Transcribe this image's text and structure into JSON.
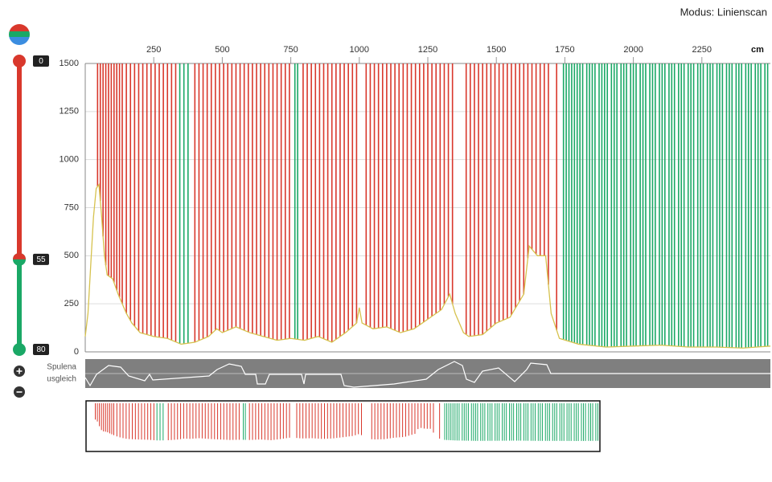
{
  "header": {
    "mode": "Modus: Linienscan"
  },
  "slider": {
    "thumbs": [
      {
        "value": 0,
        "color": "#d9382c"
      },
      {
        "value": 55,
        "color": "#1aa866"
      },
      {
        "value": 80,
        "color": "#1aa866"
      }
    ]
  },
  "compensation": {
    "label_lines": [
      "Spulena",
      "usgleich"
    ]
  },
  "chart_data": {
    "type": "line",
    "x_unit": "cm",
    "xlim": [
      0,
      2500
    ],
    "ylim": [
      0,
      1500
    ],
    "xticks": [
      250,
      500,
      750,
      1000,
      1250,
      1500,
      1750,
      2000,
      2250
    ],
    "yticks": [
      0,
      250,
      500,
      750,
      1000,
      1250,
      1500
    ],
    "grid": true,
    "trace": {
      "color": "#d6c24e",
      "x": [
        0,
        10,
        20,
        30,
        40,
        50,
        60,
        70,
        80,
        100,
        120,
        150,
        170,
        200,
        250,
        300,
        350,
        400,
        450,
        480,
        500,
        550,
        600,
        650,
        700,
        750,
        800,
        850,
        900,
        950,
        990,
        1000,
        1010,
        1050,
        1100,
        1150,
        1200,
        1250,
        1300,
        1330,
        1350,
        1380,
        1400,
        1450,
        1500,
        1550,
        1600,
        1620,
        1650,
        1680,
        1700,
        1730,
        1800,
        1900,
        2000,
        2100,
        2200,
        2300,
        2400,
        2450,
        2500
      ],
      "values": [
        80,
        200,
        450,
        700,
        850,
        870,
        700,
        500,
        400,
        380,
        300,
        200,
        150,
        100,
        80,
        70,
        40,
        50,
        80,
        120,
        100,
        130,
        100,
        80,
        60,
        70,
        60,
        80,
        50,
        100,
        150,
        230,
        150,
        120,
        130,
        100,
        120,
        170,
        220,
        300,
        200,
        100,
        80,
        90,
        150,
        180,
        300,
        550,
        500,
        500,
        200,
        70,
        40,
        25,
        30,
        35,
        25,
        25,
        20,
        25,
        30
      ]
    },
    "series": [
      {
        "name": "red",
        "color": "#d9382c",
        "x": [
          45,
          55,
          65,
          75,
          85,
          95,
          105,
          115,
          125,
          135,
          150,
          165,
          180,
          195,
          210,
          225,
          240,
          255,
          270,
          285,
          300,
          315,
          330,
          400,
          415,
          430,
          445,
          460,
          475,
          490,
          505,
          520,
          535,
          550,
          565,
          580,
          595,
          610,
          625,
          640,
          655,
          670,
          685,
          700,
          715,
          730,
          745,
          795,
          810,
          825,
          840,
          855,
          870,
          885,
          900,
          915,
          930,
          945,
          960,
          975,
          990,
          1025,
          1040,
          1055,
          1070,
          1085,
          1100,
          1115,
          1130,
          1145,
          1160,
          1175,
          1190,
          1205,
          1220,
          1235,
          1250,
          1265,
          1280,
          1295,
          1310,
          1325,
          1340,
          1390,
          1405,
          1420,
          1435,
          1450,
          1465,
          1480,
          1495,
          1510,
          1525,
          1540,
          1555,
          1570,
          1585,
          1600,
          1615,
          1630,
          1645,
          1660,
          1675,
          1690,
          1720
        ]
      },
      {
        "name": "green",
        "color": "#1aa866",
        "x": [
          345,
          360,
          375,
          765,
          775,
          1745,
          1755,
          1765,
          1775,
          1785,
          1795,
          1805,
          1815,
          1830,
          1840,
          1850,
          1860,
          1875,
          1885,
          1895,
          1905,
          1920,
          1930,
          1940,
          1955,
          1965,
          1975,
          1990,
          2000,
          2010,
          2025,
          2035,
          2045,
          2060,
          2070,
          2080,
          2095,
          2105,
          2115,
          2130,
          2140,
          2150,
          2165,
          2175,
          2185,
          2200,
          2210,
          2220,
          2235,
          2245,
          2255,
          2270,
          2280,
          2290,
          2305,
          2315,
          2325,
          2340,
          2350,
          2360,
          2375,
          2385,
          2395,
          2410,
          2420,
          2430,
          2445,
          2455,
          2465,
          2480,
          2490
        ]
      }
    ]
  }
}
